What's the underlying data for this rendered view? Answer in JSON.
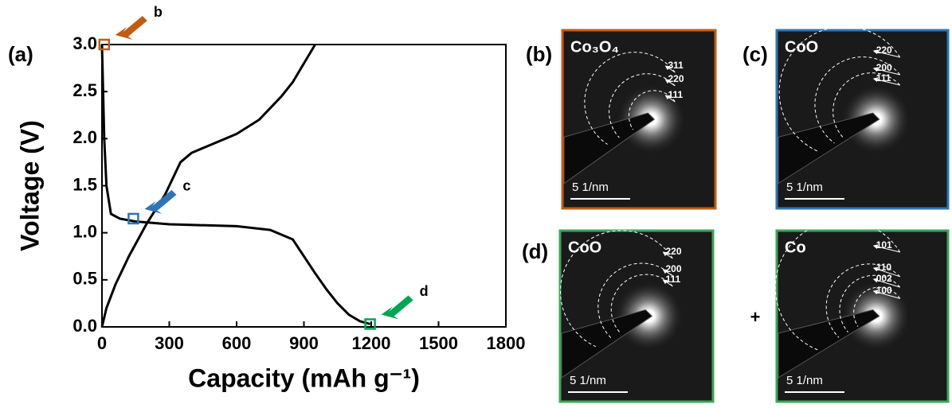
{
  "chart_data": {
    "type": "line",
    "panel_label": "(a)",
    "x_label": "Capacity (mAh g⁻¹)",
    "y_label": "Voltage (V)",
    "xlim": [
      0,
      1800
    ],
    "ylim": [
      0,
      3.0
    ],
    "xticks": [
      0,
      300,
      600,
      900,
      1200,
      1500,
      1800
    ],
    "yticks": [
      {
        "value": 0,
        "label": "0.0"
      },
      {
        "value": 0.5,
        "label": "0.5"
      },
      {
        "value": 1,
        "label": "1.0"
      },
      {
        "value": 1.5,
        "label": "1.5"
      },
      {
        "value": 2,
        "label": "2.0"
      },
      {
        "value": 2.5,
        "label": "2.5"
      },
      {
        "value": 3,
        "label": "3.0"
      }
    ],
    "series": [
      {
        "color": "#000000",
        "x": [
          0,
          5,
          10,
          20,
          40,
          80,
          150,
          300,
          600,
          750,
          850,
          900,
          950,
          1000,
          1050,
          1100,
          1150,
          1195
        ],
        "values": [
          3.0,
          2.5,
          2.0,
          1.5,
          1.2,
          1.15,
          1.12,
          1.09,
          1.07,
          1.03,
          0.93,
          0.75,
          0.57,
          0.4,
          0.25,
          0.13,
          0.06,
          0.03
        ]
      },
      {
        "color": "#000000",
        "x": [
          0,
          20,
          60,
          120,
          200,
          280,
          350,
          400,
          500,
          600,
          700,
          800,
          850,
          900,
          950
        ],
        "values": [
          0,
          0.2,
          0.45,
          0.75,
          1.1,
          1.4,
          1.75,
          1.85,
          1.95,
          2.05,
          2.2,
          2.45,
          2.6,
          2.8,
          3.0
        ]
      }
    ],
    "markers": [
      {
        "label": "b",
        "x": 10,
        "y": 3.0,
        "color": "#c55a11"
      },
      {
        "label": "c",
        "x": 140,
        "y": 1.15,
        "color": "#2e75b6"
      },
      {
        "label": "d",
        "x": 1195,
        "y": 0.03,
        "color": "#00a651"
      }
    ]
  },
  "images": [
    {
      "panel_label": "(b)",
      "phase": "Co₃O₄",
      "rings": [
        "311",
        "220",
        "111"
      ],
      "scale_bar": "5 1/nm",
      "border": "#c55a11"
    },
    {
      "panel_label": "(c)",
      "phase": "CoO",
      "rings": [
        "220",
        "200",
        "111"
      ],
      "scale_bar": "5 1/nm",
      "border": "#2e75b6"
    },
    {
      "panel_label": "(d)",
      "phase": "CoO",
      "rings": [
        "220",
        "200",
        "111"
      ],
      "scale_bar": "5 1/nm",
      "border": "#3aa655"
    },
    {
      "phase": "Co",
      "rings": [
        "101",
        "110",
        "002",
        "100"
      ],
      "scale_bar": "5 1/nm",
      "border": "#3aa655"
    }
  ],
  "join": "+"
}
